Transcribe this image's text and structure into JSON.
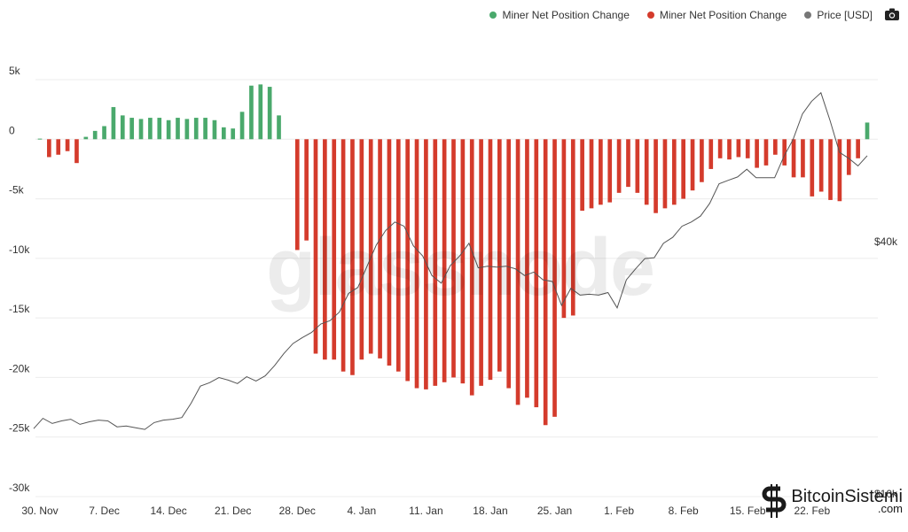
{
  "legend": {
    "green_label": "Miner Net Position Change",
    "red_label": "Miner Net Position Change",
    "price_label": "Price [USD]",
    "camera_icon": "camera-icon"
  },
  "watermark": {
    "text": "glassnode"
  },
  "brand": {
    "name": "BitcoinSistemi",
    "suffix": ".com"
  },
  "colors": {
    "positive": "#4aa96c",
    "negative": "#d43b2c",
    "price": "#555555",
    "grid": "#ececec"
  },
  "chart_data": {
    "type": "bar",
    "ylim": [
      -30000,
      5000
    ],
    "y_ticks": [
      {
        "value": 5000,
        "label": "5k"
      },
      {
        "value": 0,
        "label": "0"
      },
      {
        "value": -5000,
        "label": "-5k"
      },
      {
        "value": -10000,
        "label": "-10k"
      },
      {
        "value": -15000,
        "label": "-15k"
      },
      {
        "value": -20000,
        "label": "-20k"
      },
      {
        "value": -25000,
        "label": "-25k"
      },
      {
        "value": -30000,
        "label": "-30k"
      }
    ],
    "x_ticks": [
      {
        "index": 0,
        "label": "30. Nov"
      },
      {
        "index": 7,
        "label": "7. Dec"
      },
      {
        "index": 14,
        "label": "14. Dec"
      },
      {
        "index": 21,
        "label": "21. Dec"
      },
      {
        "index": 28,
        "label": "28. Dec"
      },
      {
        "index": 35,
        "label": "4. Jan"
      },
      {
        "index": 42,
        "label": "11. Jan"
      },
      {
        "index": 49,
        "label": "18. Jan"
      },
      {
        "index": 56,
        "label": "25. Jan"
      },
      {
        "index": 63,
        "label": "1. Feb"
      },
      {
        "index": 70,
        "label": "8. Feb"
      },
      {
        "index": 77,
        "label": "15. Feb"
      },
      {
        "index": 84,
        "label": "22. Feb"
      }
    ],
    "right_axis_labels": [
      {
        "label": "$40k",
        "price": 40000
      },
      {
        "label": "$10k",
        "price": 10000
      }
    ],
    "price_range": [
      10000,
      58000
    ],
    "series": [
      {
        "name": "Miner Net Position Change",
        "values": [
          50,
          -1500,
          -1300,
          -1000,
          -2000,
          200,
          700,
          1100,
          2700,
          2000,
          1800,
          1700,
          1800,
          1800,
          1600,
          1800,
          1700,
          1800,
          1800,
          1600,
          1000,
          900,
          2300,
          4500,
          4600,
          4400,
          2000,
          0,
          -9300,
          -8500,
          -18000,
          -18500,
          -18500,
          -19500,
          -19800,
          -18500,
          -18000,
          -18400,
          -19000,
          -19500,
          -20300,
          -20900,
          -21000,
          -20700,
          -20400,
          -20000,
          -20500,
          -21500,
          -20700,
          -20200,
          -19500,
          -20900,
          -22300,
          -21700,
          -22500,
          -24000,
          -23300,
          -15000,
          -14800,
          -6000,
          -5800,
          -5500,
          -5300,
          -4500,
          -4000,
          -4500,
          -5500,
          -6200,
          -5800,
          -5500,
          -5000,
          -4300,
          -3600,
          -2500,
          -1600,
          -1700,
          -1500,
          -1600,
          -2400,
          -2200,
          -1300,
          -2200,
          -3200,
          -3200,
          -4800,
          -4400,
          -5100,
          -5200,
          -3000,
          -1600,
          1400
        ]
      }
    ],
    "price_series": {
      "name": "Price [USD]",
      "values": [
        18000,
        19200,
        18600,
        18900,
        19100,
        18500,
        18800,
        19000,
        18900,
        18200,
        18300,
        18100,
        17900,
        18700,
        19000,
        19100,
        19300,
        21000,
        23000,
        23400,
        24000,
        23700,
        23300,
        24100,
        23600,
        24200,
        25400,
        26800,
        28000,
        28700,
        29300,
        30300,
        30700,
        31700,
        33900,
        34600,
        37100,
        39600,
        41300,
        42300,
        41800,
        39500,
        38300,
        36000,
        35100,
        37200,
        38300,
        39800,
        36900,
        37100,
        37000,
        37100,
        36800,
        36000,
        36400,
        35500,
        35300,
        32500,
        34500,
        33700,
        33800,
        33700,
        34000,
        32200,
        35500,
        36800,
        38000,
        38100,
        39800,
        40500,
        41800,
        42300,
        43000,
        44500,
        46800,
        47200,
        47600,
        48500,
        47500,
        47500,
        47500,
        50000,
        52000,
        55000,
        56500,
        57500,
        54200,
        50500,
        49800,
        48900,
        50100
      ]
    }
  }
}
